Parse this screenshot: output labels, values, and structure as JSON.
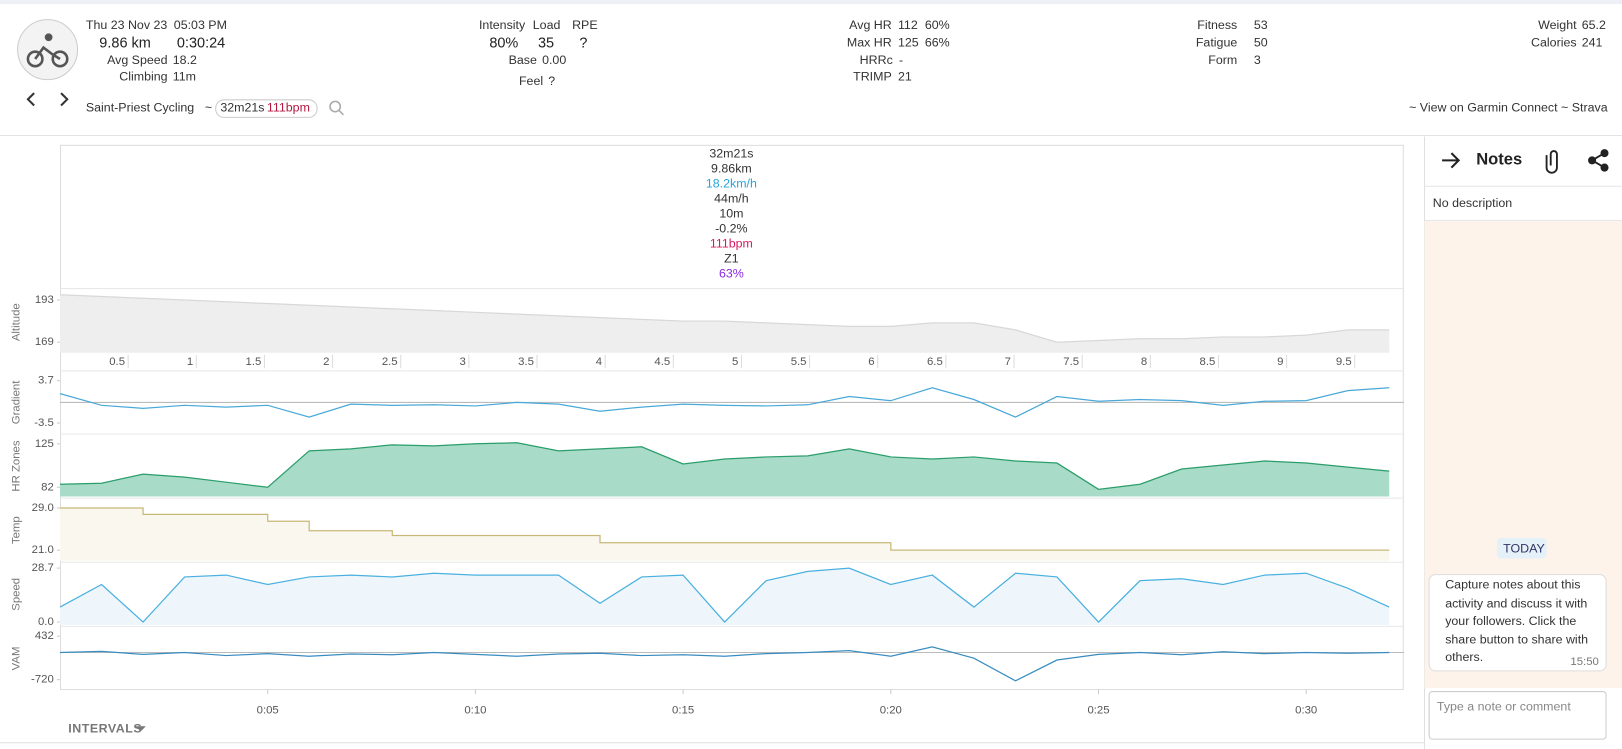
{
  "header": {
    "date": "Thu 23 Nov 23",
    "time": "05:03 PM",
    "distance": "9.86 km",
    "duration": "0:30:24",
    "avg_speed_label": "Avg Speed",
    "avg_speed": "18.2",
    "climbing_label": "Climbing",
    "climbing": "11m",
    "intensity_label": "Intensity",
    "intensity": "80%",
    "load_label": "Load",
    "load": "35",
    "rpe_label": "RPE",
    "rpe": "?",
    "base_label": "Base",
    "base": "0.00",
    "feel_label": "Feel",
    "feel": "?",
    "avg_hr_label": "Avg HR",
    "avg_hr": "112",
    "avg_hr_pct": "60%",
    "max_hr_label": "Max HR",
    "max_hr": "125",
    "max_hr_pct": "66%",
    "hrrc_label": "HRRc",
    "hrrc": "-",
    "trimp_label": "TRIMP",
    "trimp": "21",
    "fitness_label": "Fitness",
    "fitness": "53",
    "fatigue_label": "Fatigue",
    "fatigue": "50",
    "form_label": "Form",
    "form": "3",
    "weight_label": "Weight",
    "weight": "65.2",
    "calories_label": "Calories",
    "calories": "241",
    "activity_name": "Saint-Priest Cycling",
    "separator": "~",
    "chip_duration": "32m21s",
    "chip_hr": "111bpm",
    "links": "~ View on Garmin Connect ~ Strava"
  },
  "tooltip": [
    {
      "text": "32m21s",
      "color": "#333"
    },
    {
      "text": "9.86km",
      "color": "#333"
    },
    {
      "text": "18.2km/h",
      "color": "#29a3dd"
    },
    {
      "text": "44m/h",
      "color": "#333"
    },
    {
      "text": "10m",
      "color": "#333"
    },
    {
      "text": "-0.2%",
      "color": "#333"
    },
    {
      "text": "111bpm",
      "color": "#d81b60"
    },
    {
      "text": "Z1",
      "color": "#333"
    },
    {
      "text": "63%",
      "color": "#8a2be2"
    }
  ],
  "chart_data": [
    {
      "type": "area",
      "ylabel": "Altitude",
      "color": "#d8d8d8",
      "fill": "#eeeeee",
      "x": [
        0,
        1,
        2,
        3,
        4,
        5,
        6,
        7,
        8,
        9,
        10,
        11,
        12,
        13,
        14,
        15,
        16,
        17,
        18,
        19,
        20,
        21,
        22,
        23,
        24,
        25,
        26,
        27,
        28,
        29,
        30,
        31,
        32
      ],
      "values": [
        196,
        195,
        194,
        193,
        192,
        191,
        190,
        189,
        188,
        187,
        186,
        185,
        184,
        183,
        182,
        181,
        181,
        180,
        179,
        178,
        178,
        180,
        180,
        176,
        169,
        170,
        171,
        171,
        172,
        172,
        173,
        176,
        176
      ],
      "xlim": [
        0,
        32.35
      ],
      "ylim": [
        163,
        197.7
      ],
      "yticks": [
        169,
        193
      ],
      "distance_xlim": [
        0,
        9.86
      ],
      "distance_ticks": [
        0.5,
        1,
        1.5,
        2,
        2.5,
        3,
        3.5,
        4,
        4.5,
        5,
        5.5,
        6,
        6.5,
        7,
        7.5,
        8,
        8.5,
        9,
        9.5
      ]
    },
    {
      "type": "line",
      "ylabel": "Gradient",
      "color": "#4aa8d8",
      "zero_line": true,
      "x": [
        0,
        1,
        2,
        3,
        4,
        5,
        6,
        7,
        8,
        9,
        10,
        11,
        12,
        13,
        14,
        15,
        16,
        17,
        18,
        19,
        20,
        21,
        22,
        23,
        24,
        25,
        26,
        27,
        28,
        29,
        30,
        31,
        32
      ],
      "values": [
        1.5,
        -0.5,
        -1,
        -0.5,
        -0.8,
        -0.5,
        -2.5,
        -0.3,
        -0.5,
        -0.4,
        -0.6,
        0,
        -0.3,
        -1.5,
        -0.8,
        -0.3,
        -0.5,
        -0.6,
        -0.4,
        1,
        0.3,
        2.5,
        0.5,
        -2.5,
        1,
        0.2,
        0.5,
        0.3,
        -0.5,
        0.2,
        0.3,
        2,
        2.5
      ],
      "xlim": [
        0,
        32.35
      ],
      "ylim": [
        -5.1,
        5.1
      ],
      "yticks": [
        -3.5,
        3.7
      ]
    },
    {
      "type": "area",
      "ylabel": "HR Zones",
      "color": "#2a9d6a",
      "fill": "#a8dcc8",
      "x": [
        0,
        1,
        2,
        3,
        4,
        5,
        6,
        7,
        8,
        9,
        10,
        11,
        12,
        13,
        14,
        15,
        16,
        17,
        18,
        19,
        20,
        21,
        22,
        23,
        24,
        25,
        26,
        27,
        28,
        29,
        30,
        31,
        32
      ],
      "values": [
        85,
        86,
        95,
        92,
        87,
        82,
        118,
        120,
        124,
        123,
        125,
        126,
        118,
        120,
        122,
        105,
        110,
        112,
        113,
        120,
        112,
        110,
        112,
        108,
        106,
        80,
        85,
        100,
        104,
        108,
        106,
        102,
        98
      ],
      "xlim": [
        0,
        32.35
      ],
      "ylim": [
        72.8,
        133.2
      ],
      "yticks": [
        82,
        125
      ]
    },
    {
      "type": "area",
      "ylabel": "Temp",
      "color": "#c8b878",
      "fill": "#faf8ee",
      "step": true,
      "x": [
        0,
        1,
        2,
        3,
        4,
        5,
        6,
        7,
        8,
        9,
        10,
        11,
        12,
        13,
        14,
        15,
        16,
        17,
        18,
        19,
        20,
        21,
        22,
        23,
        24,
        25,
        26,
        27,
        28,
        29,
        30,
        31,
        32
      ],
      "values": [
        29,
        29,
        27.8,
        27.8,
        27.8,
        26.5,
        24.7,
        24.7,
        23.8,
        23.8,
        23.8,
        23.8,
        23.8,
        22.4,
        22.4,
        22.4,
        22.4,
        22.4,
        22.4,
        22.4,
        21,
        21,
        21,
        21,
        21,
        21,
        21,
        21,
        21,
        21,
        21,
        21,
        21
      ],
      "xlim": [
        0,
        32.35
      ],
      "ylim": [
        19,
        30.6
      ],
      "yticks": [
        {
          "value": 21,
          "label": "21.0"
        },
        {
          "value": 29,
          "label": "29.0"
        }
      ]
    },
    {
      "type": "area",
      "ylabel": "Speed",
      "color": "#4ab0e0",
      "fill": "#eef6fb",
      "x": [
        0,
        1,
        2,
        3,
        4,
        5,
        6,
        7,
        8,
        9,
        10,
        11,
        12,
        13,
        14,
        15,
        16,
        17,
        18,
        19,
        20,
        21,
        22,
        23,
        24,
        25,
        26,
        27,
        28,
        29,
        30,
        31,
        32
      ],
      "values": [
        8,
        20,
        0,
        24,
        25,
        20,
        24,
        25,
        24,
        26,
        25,
        25,
        25,
        10,
        24,
        25,
        0,
        22,
        27,
        28.7,
        20,
        25,
        8,
        26,
        24,
        0,
        22,
        23,
        20,
        25,
        26,
        18,
        8
      ],
      "xlim": [
        0,
        32.35
      ],
      "ylim": [
        -1.5,
        31
      ],
      "yticks": [
        {
          "value": 0,
          "label": "0.0"
        },
        28.7
      ]
    },
    {
      "type": "line",
      "ylabel": "VAM",
      "color": "#3a8cc0",
      "zero_line": true,
      "x": [
        0,
        1,
        2,
        3,
        4,
        5,
        6,
        7,
        8,
        9,
        10,
        11,
        12,
        13,
        14,
        15,
        16,
        17,
        18,
        19,
        20,
        21,
        22,
        23,
        24,
        25,
        26,
        27,
        28,
        29,
        30,
        31,
        32
      ],
      "values": [
        0,
        30,
        -50,
        0,
        -80,
        -30,
        -100,
        -40,
        -60,
        0,
        -50,
        -100,
        -40,
        -20,
        -80,
        -60,
        -100,
        -30,
        0,
        50,
        -100,
        150,
        -150,
        -750,
        -200,
        -50,
        0,
        -60,
        20,
        -30,
        0,
        -20,
        0
      ],
      "xlim": [
        0,
        32.35
      ],
      "ylim": [
        -967,
        651
      ],
      "yticks": [
        -720,
        432
      ],
      "xticks": [
        {
          "value": 5,
          "label": "0:05"
        },
        {
          "value": 10,
          "label": "0:10"
        },
        {
          "value": 15,
          "label": "0:15"
        },
        {
          "value": 20,
          "label": "0:20"
        },
        {
          "value": 25,
          "label": "0:25"
        },
        {
          "value": 30,
          "label": "0:30"
        }
      ]
    }
  ],
  "intervals_button": "INTERVALS",
  "notes": {
    "title": "Notes",
    "description": "No description",
    "day": "TODAY",
    "message": "Capture notes about this activity and discuss it with your followers. Click the share button to share with others.",
    "message_time": "15:50",
    "input_placeholder": "Type a note or comment"
  }
}
